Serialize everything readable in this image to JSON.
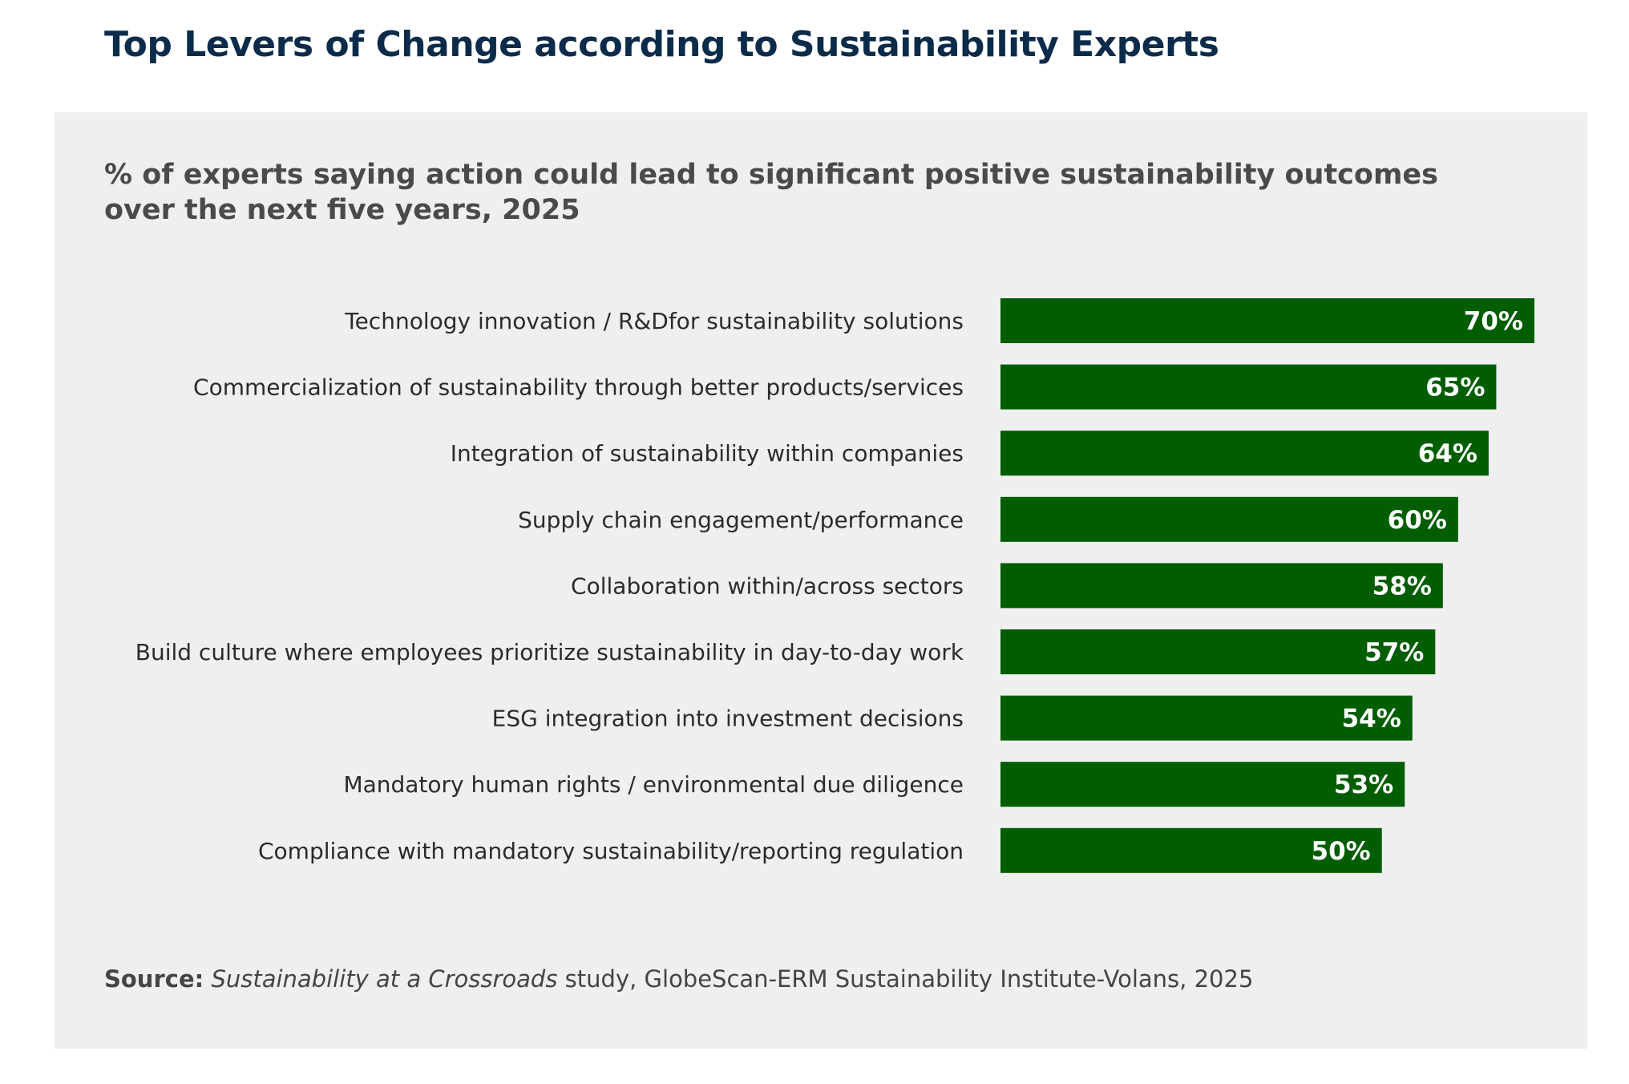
{
  "title": "Top Levers of Change according to Sustainability Experts",
  "subtitle": "% of experts saying action could lead to significant positive sustainability outcomes over the next five years, 2025",
  "source": {
    "label": "Source:",
    "title": "Sustainability at a Crossroads",
    "rest": " study, GlobeScan-ERM Sustainability Institute-Volans, 2025"
  },
  "colors": {
    "bar": "#005d00",
    "panel": "#efefef",
    "title": "#0b2b4a",
    "value_label": "#ffffff",
    "category_label": "#2b2b2b"
  },
  "chart_data": {
    "type": "bar",
    "orientation": "horizontal",
    "categories": [
      "Technology innovation / R&Dfor sustainability solutions",
      "Commercialization of sustainability through better products/services",
      "Integration of sustainability within companies",
      "Supply chain engagement/performance",
      "Collaboration within/across sectors",
      "Build culture where employees prioritize sustainability in day-to-day work",
      "ESG integration into investment decisions",
      "Mandatory human rights / environmental due diligence",
      "Compliance with mandatory sustainability/reporting regulation"
    ],
    "values": [
      70,
      65,
      64,
      60,
      58,
      57,
      54,
      53,
      50
    ],
    "value_labels": [
      "70%",
      "65%",
      "64%",
      "60%",
      "58%",
      "57%",
      "54%",
      "53%",
      "50%"
    ],
    "xlim": [
      0,
      70
    ],
    "grid": false,
    "legend": "none"
  }
}
